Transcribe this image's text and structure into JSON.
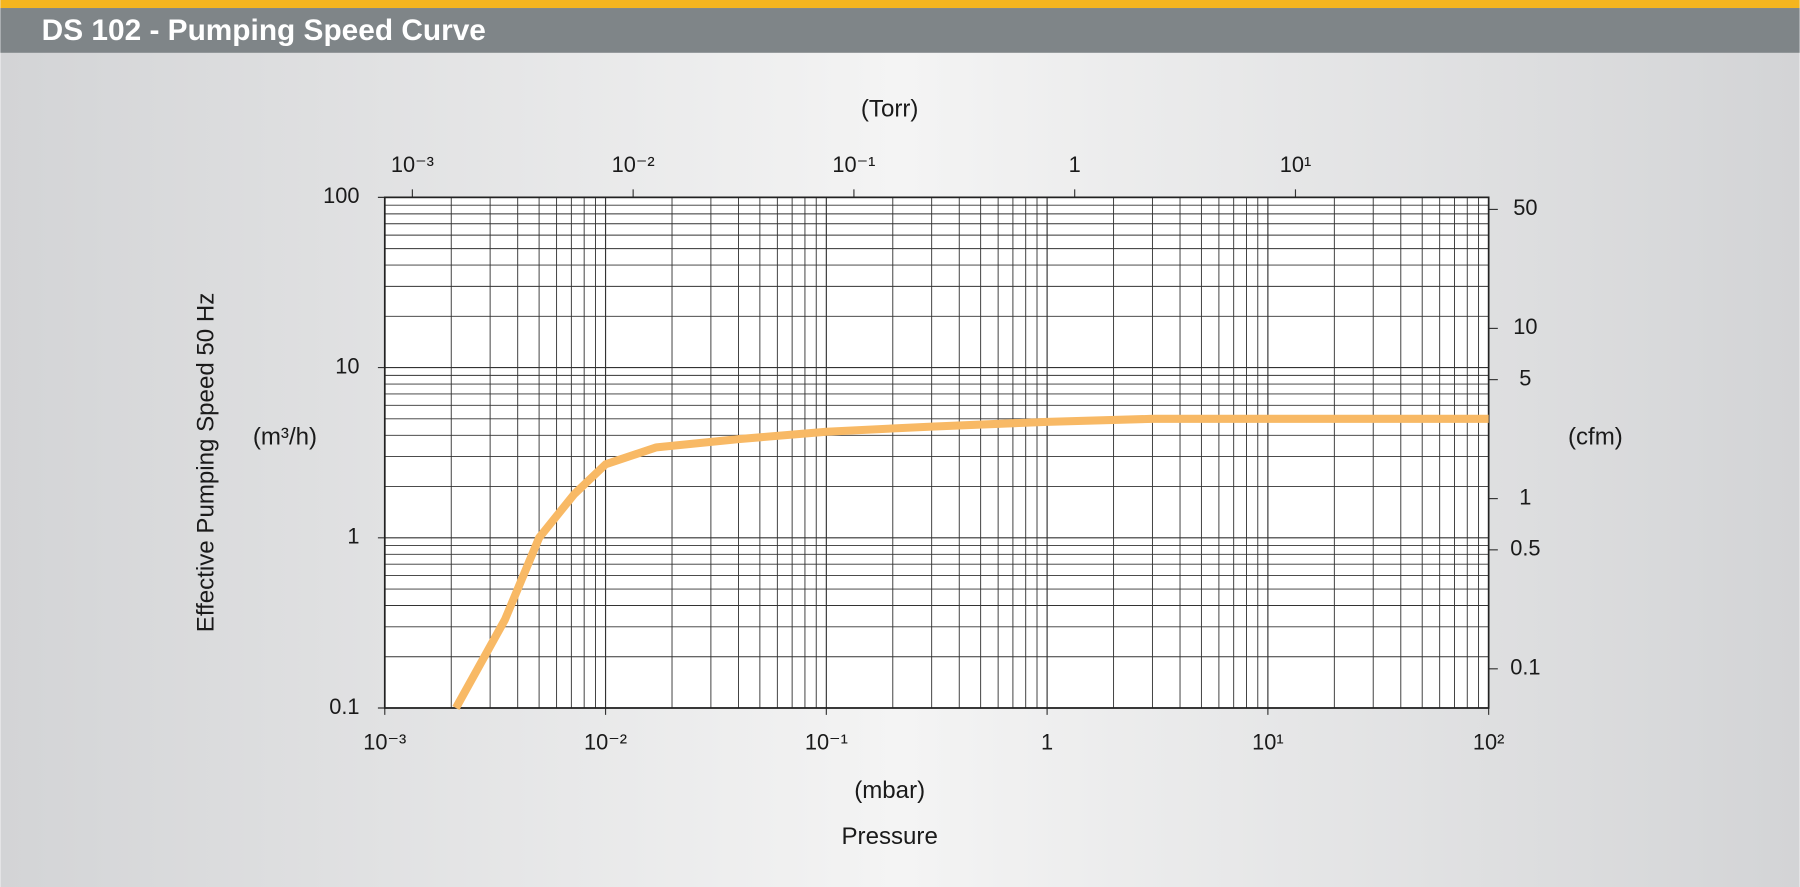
{
  "chart_data": {
    "type": "line",
    "title": "DS 102 - Pumping Speed Curve",
    "x_label": "(mbar)",
    "x_title": "Pressure",
    "x2_label": "(Torr)",
    "y_label": "Effective Pumping Speed  50 Hz",
    "y_unit": "(m³/h)",
    "y2_label": "(cfm)",
    "log_x": true,
    "log_y": true,
    "grid": true,
    "minor_grid": true,
    "color": "#f8b965",
    "x": [
      0.0021,
      0.0035,
      0.005,
      0.0072,
      0.01,
      0.017,
      0.04,
      0.1,
      0.3,
      1,
      3,
      10,
      100
    ],
    "values": [
      0.1,
      0.33,
      1.0,
      1.8,
      2.7,
      3.4,
      3.8,
      4.2,
      4.5,
      4.8,
      5.0,
      5.0,
      5.0
    ],
    "xlim": [
      0.001,
      100
    ],
    "xticks": [
      {
        "value": 0.001,
        "label": "10⁻³"
      },
      {
        "value": 0.01,
        "label": "10⁻²"
      },
      {
        "value": 0.1,
        "label": "10⁻¹"
      },
      1,
      {
        "value": 10,
        "label": "10¹"
      },
      {
        "value": 100,
        "label": "10²"
      }
    ],
    "x2lim": [
      0.00075,
      75
    ],
    "x2ticks": [
      {
        "value": 0.001,
        "label": "10⁻³"
      },
      {
        "value": 0.01,
        "label": "10⁻²"
      },
      {
        "value": 0.1,
        "label": "10⁻¹"
      },
      1,
      {
        "value": 10,
        "label": "10¹"
      }
    ],
    "ylim": [
      0.1,
      100
    ],
    "yticks": [
      0.1,
      1,
      10,
      100
    ],
    "y2lim": [
      0.05886,
      58.86
    ],
    "y2ticks": [
      0.1,
      0.5,
      1,
      5,
      10,
      50
    ]
  }
}
